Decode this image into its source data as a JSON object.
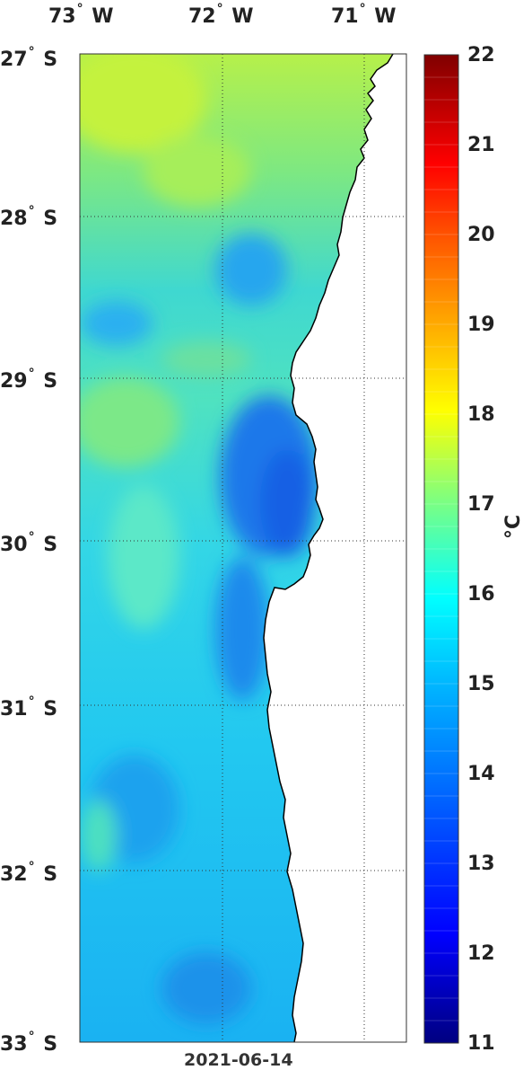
{
  "lon_labels": [
    {
      "deg": "73",
      "hem": "W"
    },
    {
      "deg": "72",
      "hem": "W"
    },
    {
      "deg": "71",
      "hem": "W"
    }
  ],
  "lat_labels": [
    {
      "deg": "27",
      "hem": "S"
    },
    {
      "deg": "28",
      "hem": "S"
    },
    {
      "deg": "29",
      "hem": "S"
    },
    {
      "deg": "30",
      "hem": "S"
    },
    {
      "deg": "31",
      "hem": "S"
    },
    {
      "deg": "32",
      "hem": "S"
    },
    {
      "deg": "33",
      "hem": "S"
    }
  ],
  "degree_symbol": "°",
  "colorbar": {
    "ticks": [
      "22",
      "21",
      "20",
      "19",
      "18",
      "17",
      "16",
      "15",
      "14",
      "13",
      "12",
      "11"
    ],
    "unit": "°C",
    "min": 11,
    "max": 22,
    "colormap": "jet"
  },
  "date": "2021-06-14",
  "map": {
    "lon_range": [
      -73.0,
      -70.7
    ],
    "lat_range": [
      -33.0,
      -27.0
    ],
    "land_color": "#ffffff",
    "coast_color": "#000000",
    "grid": "dotted"
  }
}
